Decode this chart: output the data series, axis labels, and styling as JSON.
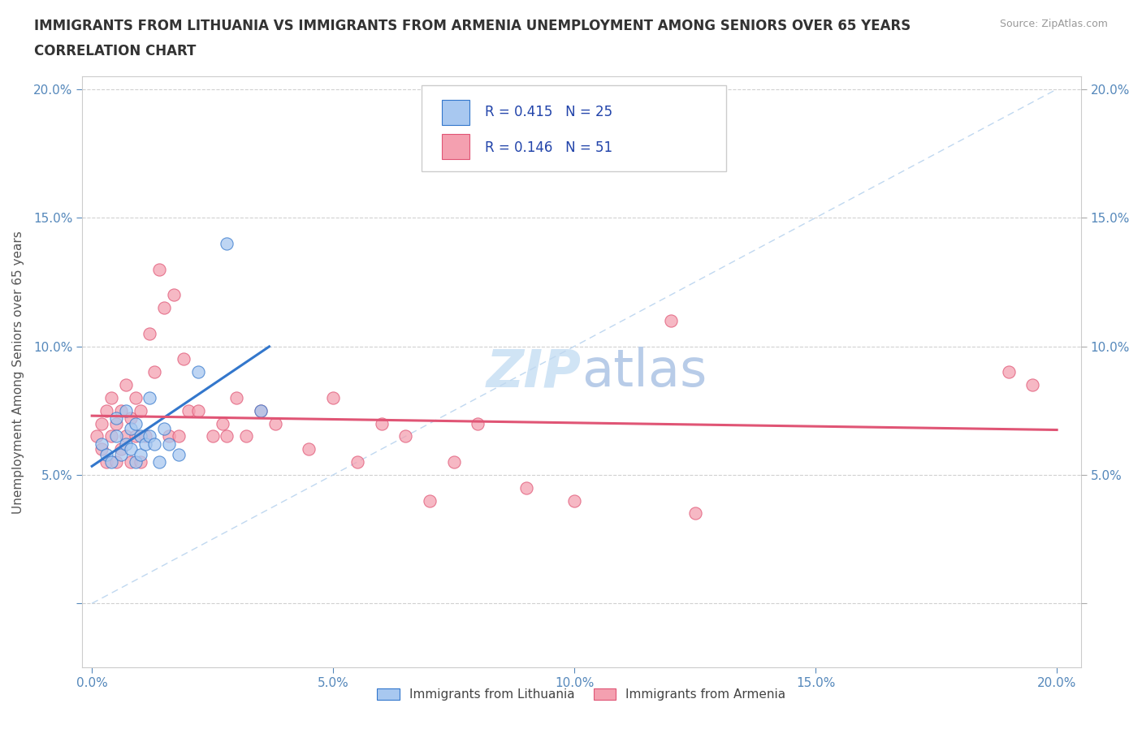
{
  "title_line1": "IMMIGRANTS FROM LITHUANIA VS IMMIGRANTS FROM ARMENIA UNEMPLOYMENT AMONG SENIORS OVER 65 YEARS",
  "title_line2": "CORRELATION CHART",
  "source_text": "Source: ZipAtlas.com",
  "ylabel": "Unemployment Among Seniors over 65 years",
  "xlim": [
    -0.002,
    0.205
  ],
  "ylim": [
    -0.025,
    0.205
  ],
  "xticks": [
    0.0,
    0.05,
    0.1,
    0.15,
    0.2
  ],
  "yticks": [
    0.0,
    0.05,
    0.1,
    0.15,
    0.2
  ],
  "r_lithuania": 0.415,
  "n_lithuania": 25,
  "r_armenia": 0.146,
  "n_armenia": 51,
  "color_lithuania": "#a8c8f0",
  "color_armenia": "#f4a0b0",
  "line_color_lithuania": "#3377cc",
  "line_color_armenia": "#e05575",
  "diagonal_color": "#c0d8f0",
  "watermark_color": "#d0e4f5",
  "legend_label_lithuania": "Immigrants from Lithuania",
  "legend_label_armenia": "Immigrants from Armenia",
  "lithuania_x": [
    0.002,
    0.003,
    0.004,
    0.005,
    0.005,
    0.006,
    0.007,
    0.007,
    0.008,
    0.008,
    0.009,
    0.009,
    0.01,
    0.01,
    0.011,
    0.012,
    0.012,
    0.013,
    0.014,
    0.015,
    0.016,
    0.018,
    0.022,
    0.028,
    0.035
  ],
  "lithuania_y": [
    0.062,
    0.058,
    0.055,
    0.065,
    0.072,
    0.058,
    0.062,
    0.075,
    0.06,
    0.068,
    0.055,
    0.07,
    0.065,
    0.058,
    0.062,
    0.08,
    0.065,
    0.062,
    0.055,
    0.068,
    0.062,
    0.058,
    0.09,
    0.14,
    0.075
  ],
  "armenia_x": [
    0.001,
    0.002,
    0.002,
    0.003,
    0.003,
    0.004,
    0.004,
    0.005,
    0.005,
    0.006,
    0.006,
    0.007,
    0.007,
    0.008,
    0.008,
    0.009,
    0.009,
    0.01,
    0.01,
    0.011,
    0.012,
    0.013,
    0.014,
    0.015,
    0.016,
    0.017,
    0.018,
    0.019,
    0.02,
    0.022,
    0.025,
    0.027,
    0.028,
    0.03,
    0.032,
    0.035,
    0.038,
    0.045,
    0.05,
    0.055,
    0.06,
    0.065,
    0.07,
    0.075,
    0.08,
    0.09,
    0.1,
    0.12,
    0.125,
    0.19,
    0.195
  ],
  "armenia_y": [
    0.065,
    0.06,
    0.07,
    0.055,
    0.075,
    0.065,
    0.08,
    0.055,
    0.07,
    0.06,
    0.075,
    0.065,
    0.085,
    0.055,
    0.072,
    0.08,
    0.065,
    0.075,
    0.055,
    0.065,
    0.105,
    0.09,
    0.13,
    0.115,
    0.065,
    0.12,
    0.065,
    0.095,
    0.075,
    0.075,
    0.065,
    0.07,
    0.065,
    0.08,
    0.065,
    0.075,
    0.07,
    0.06,
    0.08,
    0.055,
    0.07,
    0.065,
    0.04,
    0.055,
    0.07,
    0.045,
    0.04,
    0.11,
    0.035,
    0.09,
    0.085
  ]
}
